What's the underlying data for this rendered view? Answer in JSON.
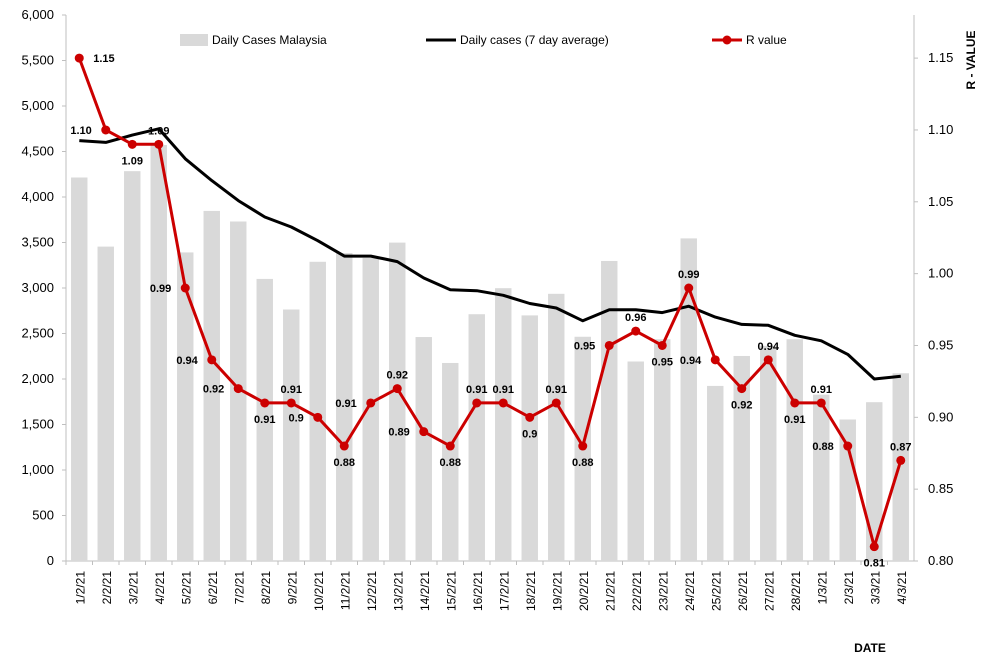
{
  "chart_data": {
    "type": "bar",
    "categories": [
      "1/2/21",
      "2/2/21",
      "3/2/21",
      "4/2/21",
      "5/2/21",
      "6/2/21",
      "7/2/21",
      "8/2/21",
      "9/2/21",
      "10/2/21",
      "11/2/21",
      "12/2/21",
      "13/2/21",
      "14/2/21",
      "15/2/21",
      "16/2/21",
      "17/2/21",
      "18/2/21",
      "19/2/21",
      "20/2/21",
      "21/2/21",
      "22/2/21",
      "23/2/21",
      "24/2/21",
      "25/2/21",
      "26/2/21",
      "27/2/21",
      "28/2/21",
      "1/3/21",
      "2/3/21",
      "3/3/21",
      "4/3/21"
    ],
    "series": [
      {
        "name": "Daily Cases Malaysia",
        "type": "bar",
        "axis": "left",
        "color": "#d9d9d9",
        "values": [
          4214,
          3455,
          4284,
          4571,
          3391,
          3847,
          3731,
          3100,
          2764,
          3288,
          3384,
          3330,
          3499,
          2461,
          2176,
          2712,
          2998,
          2699,
          2936,
          2464,
          3297,
          2192,
          2437,
          3545,
          1924,
          2253,
          2364,
          2437,
          1828,
          1555,
          1745,
          2063
        ]
      },
      {
        "name": "Daily cases (7 day average)",
        "type": "line",
        "axis": "left",
        "color": "#000000",
        "values": [
          4620,
          4600,
          4680,
          4750,
          4420,
          4180,
          3960,
          3780,
          3670,
          3520,
          3350,
          3350,
          3290,
          3110,
          2980,
          2970,
          2920,
          2830,
          2780,
          2640,
          2760,
          2760,
          2730,
          2800,
          2680,
          2600,
          2590,
          2480,
          2420,
          2270,
          2000,
          2030
        ]
      },
      {
        "name": "R value",
        "type": "line",
        "axis": "right",
        "color": "#cc0000",
        "values": [
          1.15,
          1.1,
          1.09,
          1.09,
          0.99,
          0.94,
          0.92,
          0.91,
          0.91,
          0.9,
          0.88,
          0.91,
          0.92,
          0.89,
          0.88,
          0.91,
          0.91,
          0.9,
          0.91,
          0.88,
          0.95,
          0.96,
          0.95,
          0.99,
          0.94,
          0.92,
          0.94,
          0.91,
          0.91,
          0.88,
          0.81,
          0.87
        ],
        "labels": [
          "1.15",
          "1.10",
          "1.09",
          "1.09",
          "0.99",
          "0.94",
          "0.92",
          "0.91",
          "0.91",
          "0.9",
          "0.88",
          "0.91",
          "0.92",
          "0.89",
          "0.88",
          "0.91",
          "0.91",
          "0.9",
          "0.91",
          "0.88",
          "0.95",
          "0.96",
          "0.95",
          "0.99",
          "0.94",
          "0.92",
          "0.94",
          "0.91",
          "0.91",
          "0.88",
          "0.81",
          "0.87"
        ]
      }
    ],
    "y_left": {
      "min": 0,
      "max": 6000,
      "step": 500,
      "ticks": [
        "0",
        "500",
        "1,000",
        "1,500",
        "2,000",
        "2,500",
        "3,000",
        "3,500",
        "4,000",
        "4,500",
        "5,000",
        "5,500",
        "6,000"
      ]
    },
    "y_right": {
      "min": 0.8,
      "max": 1.18,
      "ticks": [
        "0.80",
        "0.85",
        "0.90",
        "0.95",
        "1.00",
        "1.05",
        "1.10",
        "1.15"
      ],
      "label": "R - VALUE"
    },
    "xlabel": "DATE",
    "grid": false,
    "legend": "top"
  }
}
